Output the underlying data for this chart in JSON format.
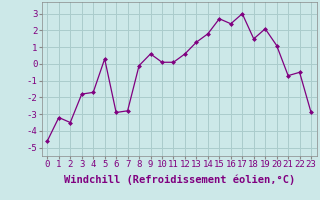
{
  "x": [
    0,
    1,
    2,
    3,
    4,
    5,
    6,
    7,
    8,
    9,
    10,
    11,
    12,
    13,
    14,
    15,
    16,
    17,
    18,
    19,
    20,
    21,
    22,
    23
  ],
  "y": [
    -4.6,
    -3.2,
    -3.5,
    -1.8,
    -1.7,
    0.3,
    -2.9,
    -2.8,
    -0.1,
    0.6,
    0.1,
    0.1,
    0.6,
    1.3,
    1.8,
    2.7,
    2.4,
    3.0,
    1.5,
    2.1,
    1.1,
    -0.7,
    -0.5,
    -2.9
  ],
  "line_color": "#800080",
  "marker": "D",
  "marker_size": 2.5,
  "bg_color": "#cce8e8",
  "grid_color": "#aacccc",
  "xlabel": "Windchill (Refroidissement éolien,°C)",
  "xlabel_fontsize": 7.5,
  "tick_fontsize": 6.5,
  "ylim": [
    -5.5,
    3.7
  ],
  "yticks": [
    -5,
    -4,
    -3,
    -2,
    -1,
    0,
    1,
    2,
    3
  ],
  "xlim": [
    -0.5,
    23.5
  ],
  "xticks": [
    0,
    1,
    2,
    3,
    4,
    5,
    6,
    7,
    8,
    9,
    10,
    11,
    12,
    13,
    14,
    15,
    16,
    17,
    18,
    19,
    20,
    21,
    22,
    23
  ]
}
